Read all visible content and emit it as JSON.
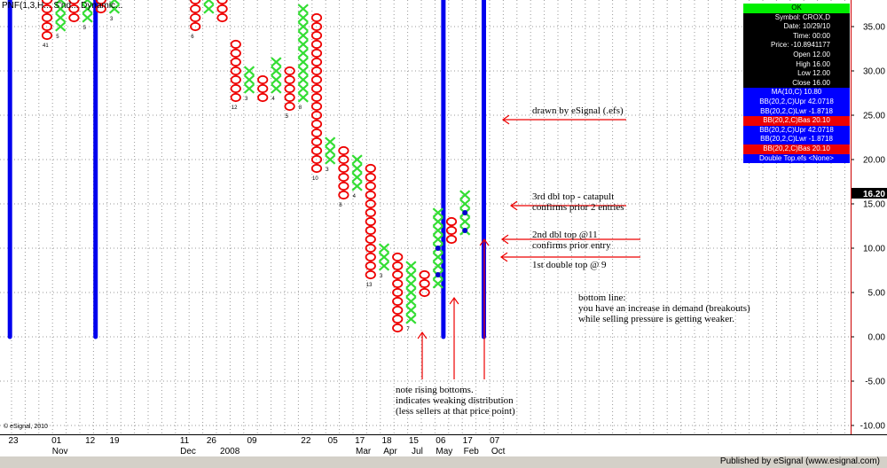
{
  "title_bar": "PNF(1,3,H... S'nd... Dynamic...",
  "copyright": "© eSignal, 2010",
  "footer": "Published by eSignal (www.esignal.com)",
  "current_price_label": "16.20",
  "info_box": [
    {
      "text": "OK",
      "style": "ok"
    },
    {
      "text": "Symbol: CROX,D",
      "style": "black"
    },
    {
      "text": "Date: 10/29/10",
      "style": "black"
    },
    {
      "text": "Time: 00:00",
      "style": "black"
    },
    {
      "text": "Price: -10.8941177",
      "style": "black"
    },
    {
      "text": "Open 12.00",
      "style": "black"
    },
    {
      "text": "High 16.00",
      "style": "black"
    },
    {
      "text": "Low 12.00",
      "style": "black"
    },
    {
      "text": "Close 16.00",
      "style": "black"
    },
    {
      "text": "MA(10,C) 10.80",
      "style": "blue"
    },
    {
      "text": "BB(20,2,C)Upr 42.0718",
      "style": "blue"
    },
    {
      "text": "BB(20,2,C)Lwr -1.8718",
      "style": "blue"
    },
    {
      "text": "BB(20,2,C)Bas 20.10",
      "style": "red"
    },
    {
      "text": "BB(20,2,C)Upr 42.0718",
      "style": "blue"
    },
    {
      "text": "BB(20,2,C)Lwr -1.8718",
      "style": "blue"
    },
    {
      "text": "BB(20,2,C)Bas 20.10",
      "style": "red"
    },
    {
      "text": "Double Top.efs <None>",
      "style": "blue"
    }
  ],
  "annotations": [
    {
      "id": "efs",
      "lines": [
        "drawn by eSignal (.efs)"
      ]
    },
    {
      "id": "third",
      "lines": [
        "3rd dbl top - catapult",
        "confirms prior 2 entries"
      ]
    },
    {
      "id": "second",
      "lines": [
        "2nd dbl top @11",
        "confirms prior entry"
      ]
    },
    {
      "id": "first",
      "lines": [
        "1st double top @ 9"
      ]
    },
    {
      "id": "bottom",
      "lines": [
        "bottom line:",
        "you have an increase in demand (breakouts)",
        "while selling pressure is getting weaker."
      ]
    },
    {
      "id": "rising",
      "lines": [
        "note rising bottoms.",
        "indicates weaking distribution",
        "(less sellers at that price point)"
      ]
    }
  ],
  "colors": {
    "x_mark": "#33dd33",
    "o_mark": "#ee0000",
    "signal_bar": "#0000ee",
    "marker_dot": "#0000cc",
    "arrow": "#ee0000",
    "grid": "#999999",
    "info_blue": "#0000ff",
    "info_red": "#ee0000",
    "info_ok": "#00ee00"
  },
  "chart_data": {
    "type": "point-and-figure",
    "box_size": 1,
    "ylim": [
      -11,
      38
    ],
    "y_ticks": [
      -10,
      -5,
      0,
      5,
      10,
      15,
      20,
      25,
      30,
      35
    ],
    "y_tick_labels": [
      "-10.00",
      "-5.00",
      "0.00",
      "5.00",
      "10.00",
      "15.00",
      "20.00",
      "25.00",
      "30.00",
      "35.00"
    ],
    "x_labels": [
      {
        "col": -2.5,
        "top": "23",
        "bottom": ""
      },
      {
        "col": 0.7,
        "top": "01",
        "bottom": "Nov"
      },
      {
        "col": 3.2,
        "top": "12",
        "bottom": ""
      },
      {
        "col": 5,
        "top": "19",
        "bottom": ""
      },
      {
        "col": 10.2,
        "top": "11",
        "bottom": "Dec"
      },
      {
        "col": 12.2,
        "top": "26",
        "bottom": ""
      },
      {
        "col": 13.3,
        "top": "",
        "bottom": "2008"
      },
      {
        "col": 15.2,
        "top": "09",
        "bottom": ""
      },
      {
        "col": 19.2,
        "top": "22",
        "bottom": ""
      },
      {
        "col": 21.2,
        "top": "05",
        "bottom": ""
      },
      {
        "col": 23.2,
        "top": "17",
        "bottom": "Mar"
      },
      {
        "col": 25.2,
        "top": "18",
        "bottom": "Apr"
      },
      {
        "col": 27.2,
        "top": "15",
        "bottom": "Jul"
      },
      {
        "col": 29.2,
        "top": "06",
        "bottom": "May"
      },
      {
        "col": 31.2,
        "top": "17",
        "bottom": "Feb"
      },
      {
        "col": 33.2,
        "top": "07",
        "bottom": "Oct"
      }
    ],
    "columns": [
      {
        "col": 0,
        "type": "O",
        "low": 34,
        "high": 38,
        "label": "41"
      },
      {
        "col": 1,
        "type": "X",
        "low": 35,
        "high": 38,
        "label": "5"
      },
      {
        "col": 2,
        "type": "O",
        "low": 36,
        "high": 38,
        "label": ""
      },
      {
        "col": 3,
        "type": "X",
        "low": 36,
        "high": 38,
        "label": "5"
      },
      {
        "col": 4,
        "type": "O",
        "low": 37,
        "high": 38,
        "label": ""
      },
      {
        "col": 5,
        "type": "X",
        "low": 37,
        "high": 38,
        "label": "3"
      },
      {
        "col": 11,
        "type": "O",
        "low": 35,
        "high": 38,
        "label": "6"
      },
      {
        "col": 12,
        "type": "X",
        "low": 37,
        "high": 38,
        "label": ""
      },
      {
        "col": 13,
        "type": "O",
        "low": 36,
        "high": 38,
        "label": ""
      },
      {
        "col": 14,
        "type": "O",
        "low": 27,
        "high": 33,
        "label": "12"
      },
      {
        "col": 15,
        "type": "X",
        "low": 28,
        "high": 30,
        "label": "3"
      },
      {
        "col": 16,
        "type": "O",
        "low": 27,
        "high": 29,
        "label": ""
      },
      {
        "col": 17,
        "type": "X",
        "low": 28,
        "high": 31,
        "label": "4"
      },
      {
        "col": 18,
        "type": "O",
        "low": 26,
        "high": 30,
        "label": "5"
      },
      {
        "col": 19,
        "type": "X",
        "low": 27,
        "high": 37,
        "label": "8"
      },
      {
        "col": 20,
        "type": "O",
        "low": 19,
        "high": 36,
        "label": "10"
      },
      {
        "col": 21,
        "type": "X",
        "low": 20,
        "high": 22,
        "label": "3"
      },
      {
        "col": 22,
        "type": "O",
        "low": 16,
        "high": 21,
        "label": "6"
      },
      {
        "col": 23,
        "type": "X",
        "low": 17,
        "high": 20,
        "label": "4"
      },
      {
        "col": 24,
        "type": "O",
        "low": 7,
        "high": 19,
        "label": "13"
      },
      {
        "col": 25,
        "type": "X",
        "low": 8,
        "high": 10,
        "label": "3"
      },
      {
        "col": 26,
        "type": "O",
        "low": 1,
        "high": 9,
        "label": ""
      },
      {
        "col": 27,
        "type": "X",
        "low": 2,
        "high": 8,
        "label": "7"
      },
      {
        "col": 28,
        "type": "O",
        "low": 5,
        "high": 7,
        "label": ""
      },
      {
        "col": 29,
        "type": "X",
        "low": 6,
        "high": 14,
        "label": ""
      },
      {
        "col": 30,
        "type": "O",
        "low": 11,
        "high": 13,
        "label": ""
      },
      {
        "col": 31,
        "type": "X",
        "low": 12,
        "high": 16,
        "label": ""
      }
    ],
    "signal_bars": [
      {
        "col": -2.75
      },
      {
        "col": 3.6
      },
      {
        "col": 29.4
      },
      {
        "col": 32.4
      }
    ],
    "double_top_markers": [
      {
        "col": 29,
        "y": 7
      },
      {
        "col": 29,
        "y": 10
      },
      {
        "col": 31,
        "y": 12
      },
      {
        "col": 31,
        "y": 14
      }
    ]
  }
}
